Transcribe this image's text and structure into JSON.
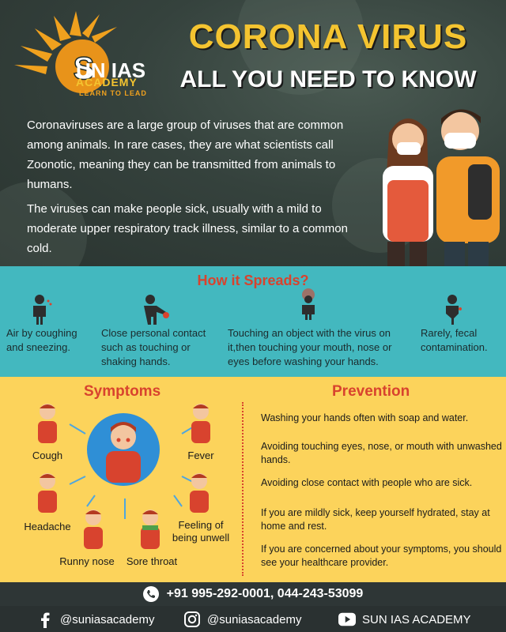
{
  "brand": {
    "logo_name": "SUN IAS",
    "logo_sub": "ACADEMY",
    "logo_tagline": "LEARN TO LEAD"
  },
  "header": {
    "title": "CORONA VIRUS",
    "subtitle": "ALL YOU NEED TO KNOW",
    "paragraphs": [
      "Coronaviruses are a large group of viruses that are common among animals. In rare cases, they are what scientists call Zoonotic, meaning they can be transmitted from animals to humans.",
      "The viruses can make people sick, usually with a mild to moderate upper respiratory track illness, similar to a common cold."
    ]
  },
  "spread": {
    "title": "How it Spreads?",
    "items": [
      {
        "icon": "coughing-person-icon",
        "text": "Air by coughing and sneezing."
      },
      {
        "icon": "handshake-contact-icon",
        "text": "Close personal contact such as touching or shaking hands."
      },
      {
        "icon": "touching-object-icon",
        "text": "Touching an object with the virus on it,then touching your mouth, nose or eyes before washing your hands."
      },
      {
        "icon": "fecal-contamination-icon",
        "text": "Rarely, fecal contamination."
      }
    ]
  },
  "symptoms": {
    "title": "Symptoms",
    "items": [
      "Cough",
      "Fever",
      "Headache",
      "Feeling of being unwell",
      "Runny nose",
      "Sore throat"
    ]
  },
  "prevention": {
    "title": "Prevention",
    "items": [
      "Washing your hands often with soap and water.",
      "Avoiding touching eyes, nose, or mouth with unwashed hands.",
      "Avoiding close contact with people who are sick.",
      "If you are mildly sick, keep yourself hydrated, stay at home and rest.",
      "If you are concerned about your symptoms, you should see your healthcare provider."
    ]
  },
  "footer": {
    "phone": "+91 995-292-0001, 044-243-53099",
    "facebook": "@suniasacademy",
    "instagram": "@suniasacademy",
    "youtube": "SUN IAS ACADEMY"
  },
  "colors": {
    "title_yellow": "#f4c430",
    "accent_red": "#d8432e",
    "teal": "#43b8bf",
    "yellow_panel": "#fcd35b",
    "dark": "#2e3636"
  }
}
